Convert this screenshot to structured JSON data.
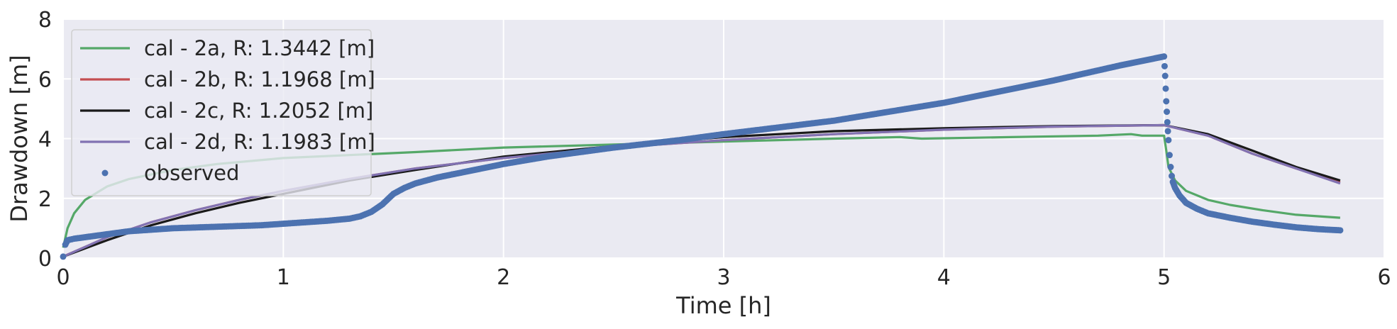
{
  "chart_data": {
    "type": "line",
    "xlabel": "Time [h]",
    "ylabel": "Drawdown [m]",
    "xlim": [
      0,
      6
    ],
    "ylim": [
      0,
      8
    ],
    "xticks": [
      "0",
      "1",
      "2",
      "3",
      "4",
      "5",
      "6"
    ],
    "yticks": [
      "0",
      "2",
      "4",
      "6",
      "8"
    ],
    "grid": true,
    "legend_position": "upper-left",
    "background": "#eaeaf2",
    "series": [
      {
        "name": "cal - 2a, R: 1.3442 [m]",
        "color": "#55a868",
        "style": "line",
        "points": [
          [
            0,
            0.35
          ],
          [
            0.02,
            1.0
          ],
          [
            0.05,
            1.5
          ],
          [
            0.1,
            1.95
          ],
          [
            0.2,
            2.4
          ],
          [
            0.3,
            2.65
          ],
          [
            0.5,
            2.95
          ],
          [
            0.7,
            3.15
          ],
          [
            1.0,
            3.35
          ],
          [
            1.3,
            3.45
          ],
          [
            1.6,
            3.55
          ],
          [
            2.0,
            3.7
          ],
          [
            2.5,
            3.8
          ],
          [
            3.0,
            3.9
          ],
          [
            3.5,
            4.0
          ],
          [
            3.8,
            4.05
          ],
          [
            3.9,
            4.0
          ],
          [
            4.3,
            4.05
          ],
          [
            4.7,
            4.1
          ],
          [
            4.85,
            4.15
          ],
          [
            4.9,
            4.1
          ],
          [
            5.0,
            4.1
          ],
          [
            5.01,
            3.6
          ],
          [
            5.02,
            3.05
          ],
          [
            5.05,
            2.6
          ],
          [
            5.1,
            2.25
          ],
          [
            5.2,
            1.95
          ],
          [
            5.3,
            1.78
          ],
          [
            5.45,
            1.6
          ],
          [
            5.6,
            1.45
          ],
          [
            5.8,
            1.35
          ]
        ]
      },
      {
        "name": "cal - 2b, R: 1.1968 [m]",
        "color": "#c44e52",
        "style": "line",
        "points": [
          [
            0,
            0.05
          ],
          [
            0.2,
            0.7
          ],
          [
            0.4,
            1.2
          ],
          [
            0.6,
            1.6
          ],
          [
            0.8,
            1.95
          ],
          [
            1.0,
            2.25
          ],
          [
            1.3,
            2.65
          ],
          [
            1.6,
            3.0
          ],
          [
            2.0,
            3.35
          ],
          [
            2.5,
            3.7
          ],
          [
            3.0,
            3.95
          ],
          [
            3.5,
            4.15
          ],
          [
            4.0,
            4.3
          ],
          [
            4.5,
            4.4
          ],
          [
            5.0,
            4.45
          ],
          [
            5.2,
            4.1
          ],
          [
            5.4,
            3.5
          ],
          [
            5.6,
            3.0
          ],
          [
            5.8,
            2.55
          ]
        ]
      },
      {
        "name": "cal - 2c, R: 1.2052 [m]",
        "color": "#1a1a1a",
        "style": "line",
        "points": [
          [
            0,
            0.05
          ],
          [
            0.2,
            0.6
          ],
          [
            0.4,
            1.1
          ],
          [
            0.6,
            1.5
          ],
          [
            0.8,
            1.85
          ],
          [
            1.0,
            2.15
          ],
          [
            1.3,
            2.6
          ],
          [
            1.6,
            2.95
          ],
          [
            2.0,
            3.4
          ],
          [
            2.5,
            3.75
          ],
          [
            3.0,
            4.05
          ],
          [
            3.5,
            4.25
          ],
          [
            4.0,
            4.35
          ],
          [
            4.5,
            4.42
          ],
          [
            5.0,
            4.45
          ],
          [
            5.2,
            4.15
          ],
          [
            5.4,
            3.6
          ],
          [
            5.6,
            3.05
          ],
          [
            5.8,
            2.6
          ]
        ]
      },
      {
        "name": "cal - 2d, R: 1.1983 [m]",
        "color": "#8172b2",
        "style": "line",
        "points": [
          [
            0,
            0.05
          ],
          [
            0.2,
            0.7
          ],
          [
            0.4,
            1.2
          ],
          [
            0.6,
            1.6
          ],
          [
            0.8,
            1.95
          ],
          [
            1.0,
            2.25
          ],
          [
            1.3,
            2.65
          ],
          [
            1.6,
            3.0
          ],
          [
            2.0,
            3.35
          ],
          [
            2.5,
            3.7
          ],
          [
            3.0,
            3.95
          ],
          [
            3.5,
            4.15
          ],
          [
            4.0,
            4.3
          ],
          [
            4.5,
            4.4
          ],
          [
            5.0,
            4.45
          ],
          [
            5.2,
            4.1
          ],
          [
            5.4,
            3.5
          ],
          [
            5.6,
            3.0
          ],
          [
            5.8,
            2.5
          ]
        ]
      },
      {
        "name": "observed",
        "color": "#4c72b0",
        "style": "markers",
        "points": [
          [
            0,
            0.05
          ],
          [
            0.01,
            0.45
          ],
          [
            0.02,
            0.6
          ],
          [
            0.05,
            0.65
          ],
          [
            0.1,
            0.7
          ],
          [
            0.2,
            0.8
          ],
          [
            0.3,
            0.9
          ],
          [
            0.5,
            1.0
          ],
          [
            0.7,
            1.05
          ],
          [
            0.9,
            1.1
          ],
          [
            1.0,
            1.15
          ],
          [
            1.1,
            1.2
          ],
          [
            1.2,
            1.25
          ],
          [
            1.3,
            1.32
          ],
          [
            1.35,
            1.4
          ],
          [
            1.4,
            1.55
          ],
          [
            1.45,
            1.8
          ],
          [
            1.5,
            2.15
          ],
          [
            1.55,
            2.35
          ],
          [
            1.6,
            2.5
          ],
          [
            1.7,
            2.7
          ],
          [
            1.8,
            2.85
          ],
          [
            2.0,
            3.15
          ],
          [
            2.2,
            3.4
          ],
          [
            2.5,
            3.7
          ],
          [
            2.8,
            3.95
          ],
          [
            3.0,
            4.15
          ],
          [
            3.5,
            4.6
          ],
          [
            4.0,
            5.2
          ],
          [
            4.5,
            5.95
          ],
          [
            4.8,
            6.45
          ],
          [
            5.0,
            6.75
          ],
          [
            5.005,
            6.1
          ],
          [
            5.01,
            5.25
          ],
          [
            5.015,
            4.55
          ],
          [
            5.02,
            3.95
          ],
          [
            5.025,
            3.45
          ],
          [
            5.03,
            3.05
          ],
          [
            5.035,
            2.75
          ],
          [
            5.04,
            2.55
          ],
          [
            5.05,
            2.35
          ],
          [
            5.07,
            2.1
          ],
          [
            5.1,
            1.85
          ],
          [
            5.15,
            1.65
          ],
          [
            5.2,
            1.5
          ],
          [
            5.3,
            1.35
          ],
          [
            5.4,
            1.22
          ],
          [
            5.5,
            1.12
          ],
          [
            5.6,
            1.03
          ],
          [
            5.7,
            0.97
          ],
          [
            5.8,
            0.93
          ]
        ]
      }
    ]
  }
}
